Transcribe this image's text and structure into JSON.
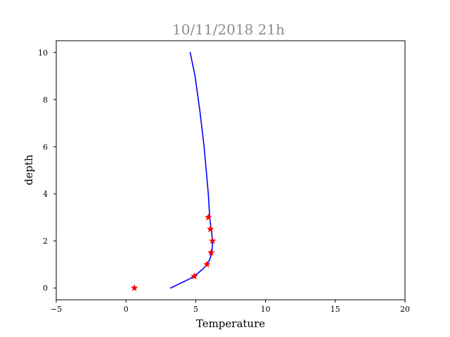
{
  "chart_data": {
    "type": "line",
    "title": "10/11/2018 21h",
    "xlabel": "Temperature",
    "ylabel": "depth",
    "xlim": [
      -5,
      20
    ],
    "ylim": [
      10.5,
      -0.5
    ],
    "y_inverted": true,
    "grid": false,
    "x_ticks": [
      -5,
      0,
      5,
      10,
      15,
      20
    ],
    "y_ticks": [
      0,
      2,
      4,
      6,
      8,
      10
    ],
    "x_tick_labels": [
      "−5",
      "0",
      "5",
      "10",
      "15",
      "20"
    ],
    "y_tick_labels": [
      "0",
      "2",
      "4",
      "6",
      "8",
      "10"
    ],
    "colors": {
      "line": "#0000ff",
      "markers": "#ff0000",
      "title": "#8c8c8c"
    },
    "series": [
      {
        "kind": "line",
        "color": "#0000ff",
        "points": [
          {
            "x": 3.2,
            "y": 0.0
          },
          {
            "x": 3.9,
            "y": 0.2
          },
          {
            "x": 4.6,
            "y": 0.4
          },
          {
            "x": 5.1,
            "y": 0.6
          },
          {
            "x": 5.5,
            "y": 0.8
          },
          {
            "x": 5.8,
            "y": 1.0
          },
          {
            "x": 6.0,
            "y": 1.2
          },
          {
            "x": 6.15,
            "y": 1.5
          },
          {
            "x": 6.2,
            "y": 1.8
          },
          {
            "x": 6.2,
            "y": 2.0
          },
          {
            "x": 6.15,
            "y": 2.3
          },
          {
            "x": 6.1,
            "y": 2.5
          },
          {
            "x": 6.0,
            "y": 3.0
          },
          {
            "x": 5.9,
            "y": 4.0
          },
          {
            "x": 5.6,
            "y": 6.0
          },
          {
            "x": 5.3,
            "y": 7.5
          },
          {
            "x": 4.95,
            "y": 9.0
          },
          {
            "x": 4.6,
            "y": 10.0
          }
        ]
      },
      {
        "kind": "scatter",
        "marker": "star",
        "color": "#ff0000",
        "points": [
          {
            "x": 0.6,
            "y": 0.0
          },
          {
            "x": 4.9,
            "y": 0.5
          },
          {
            "x": 5.8,
            "y": 1.0
          },
          {
            "x": 6.1,
            "y": 1.5
          },
          {
            "x": 6.2,
            "y": 2.0
          },
          {
            "x": 6.05,
            "y": 2.5
          },
          {
            "x": 5.9,
            "y": 3.0
          }
        ]
      }
    ]
  }
}
